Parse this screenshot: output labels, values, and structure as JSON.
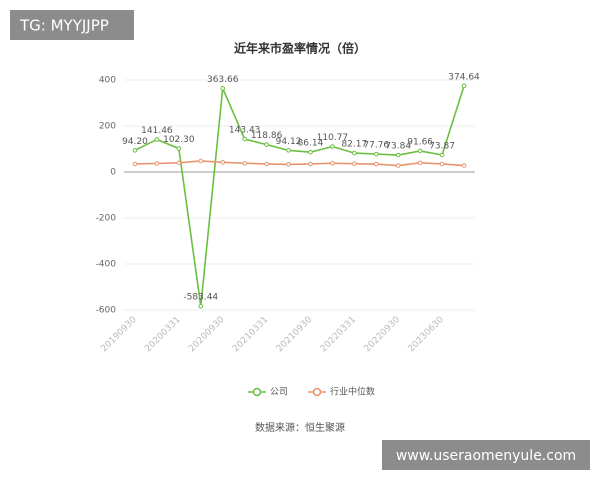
{
  "watermarks": [
    "TG: MYYJJPP",
    "www.useraomenyule.com"
  ],
  "chart_data": {
    "type": "line",
    "title": "近年来市盈率情况（倍）",
    "categories": [
      "20190930",
      null,
      "20200331",
      null,
      "20200930",
      null,
      "20210331",
      null,
      "20210930",
      null,
      "20220331",
      null,
      "20220930",
      null,
      "20230630",
      null
    ],
    "series": [
      {
        "name": "公司",
        "color": "#6abf40",
        "values": [
          94.2,
          141.46,
          102.3,
          -583.44,
          363.66,
          143.43,
          118.86,
          94.12,
          86.14,
          110.77,
          82.17,
          77.76,
          73.84,
          91.66,
          73.87,
          374.64
        ],
        "value_labels": [
          "94.20",
          "141.46",
          "102.30",
          "-583.44",
          "363.66",
          "143.43",
          "118.86",
          "94.12",
          "86.14",
          "110.77",
          "82.17",
          "77.76",
          "73.84",
          "91.66",
          "73.87",
          "374.64"
        ]
      },
      {
        "name": "行业中位数",
        "color": "#e8956f",
        "values": [
          35,
          37,
          40,
          48,
          42,
          38,
          35,
          33,
          35,
          38,
          36,
          34,
          28,
          40,
          35,
          28
        ]
      }
    ],
    "ylim": [
      -600,
      400
    ],
    "yticks": [
      -600,
      -400,
      -200,
      0,
      200,
      400
    ],
    "grid": true,
    "legend": "bottom",
    "source": "数据来源：恒生聚源"
  }
}
